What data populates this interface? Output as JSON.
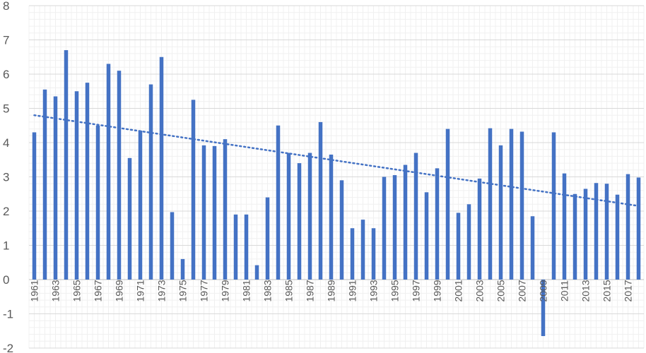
{
  "chart_data": {
    "type": "bar",
    "categories": [
      "1961",
      "1962",
      "1963",
      "1964",
      "1965",
      "1966",
      "1967",
      "1968",
      "1969",
      "1970",
      "1971",
      "1972",
      "1973",
      "1974",
      "1975",
      "1976",
      "1977",
      "1978",
      "1979",
      "1980",
      "1981",
      "1982",
      "1983",
      "1984",
      "1985",
      "1986",
      "1987",
      "1988",
      "1989",
      "1990",
      "1991",
      "1992",
      "1993",
      "1994",
      "1995",
      "1996",
      "1997",
      "1998",
      "1999",
      "2000",
      "2001",
      "2002",
      "2003",
      "2004",
      "2005",
      "2006",
      "2007",
      "2008",
      "2009",
      "2010",
      "2011",
      "2012",
      "2013",
      "2014",
      "2015",
      "2016",
      "2017",
      "2018"
    ],
    "tick_labels": [
      "1961",
      "1963",
      "1965",
      "1967",
      "1969",
      "1971",
      "1973",
      "1975",
      "1977",
      "1979",
      "1981",
      "1983",
      "1985",
      "1987",
      "1989",
      "1991",
      "1993",
      "1995",
      "1997",
      "1999",
      "2001",
      "2003",
      "2005",
      "2007",
      "2009",
      "2011",
      "2013",
      "2015",
      "2017"
    ],
    "values": [
      4.3,
      5.55,
      5.35,
      6.7,
      5.5,
      5.75,
      4.5,
      6.3,
      6.1,
      3.55,
      4.35,
      5.7,
      6.5,
      1.97,
      0.6,
      5.25,
      3.92,
      3.9,
      4.1,
      1.9,
      1.9,
      0.42,
      2.4,
      4.5,
      3.7,
      3.4,
      3.7,
      4.6,
      3.65,
      2.9,
      1.5,
      1.75,
      1.5,
      3.0,
      3.05,
      3.35,
      3.7,
      2.55,
      3.25,
      4.4,
      1.95,
      2.2,
      2.95,
      4.42,
      3.92,
      4.4,
      4.32,
      1.85,
      -1.65,
      4.3,
      3.1,
      2.5,
      2.65,
      2.82,
      2.8,
      2.48,
      3.08,
      2.98
    ],
    "trendline": {
      "style": "dotted",
      "start": 4.8,
      "end": 2.15
    },
    "ylim": [
      -2,
      8
    ],
    "yticks": [
      -2,
      -1,
      0,
      1,
      2,
      3,
      4,
      5,
      6,
      7,
      8
    ],
    "title": "",
    "xlabel": "",
    "ylabel": "",
    "grid": true,
    "minor_grid": true,
    "bar_color": "#4472c4",
    "trend_color": "#4472c4",
    "grid_color": "#d9d9d9",
    "minor_grid_color": "#f0f0f0"
  }
}
